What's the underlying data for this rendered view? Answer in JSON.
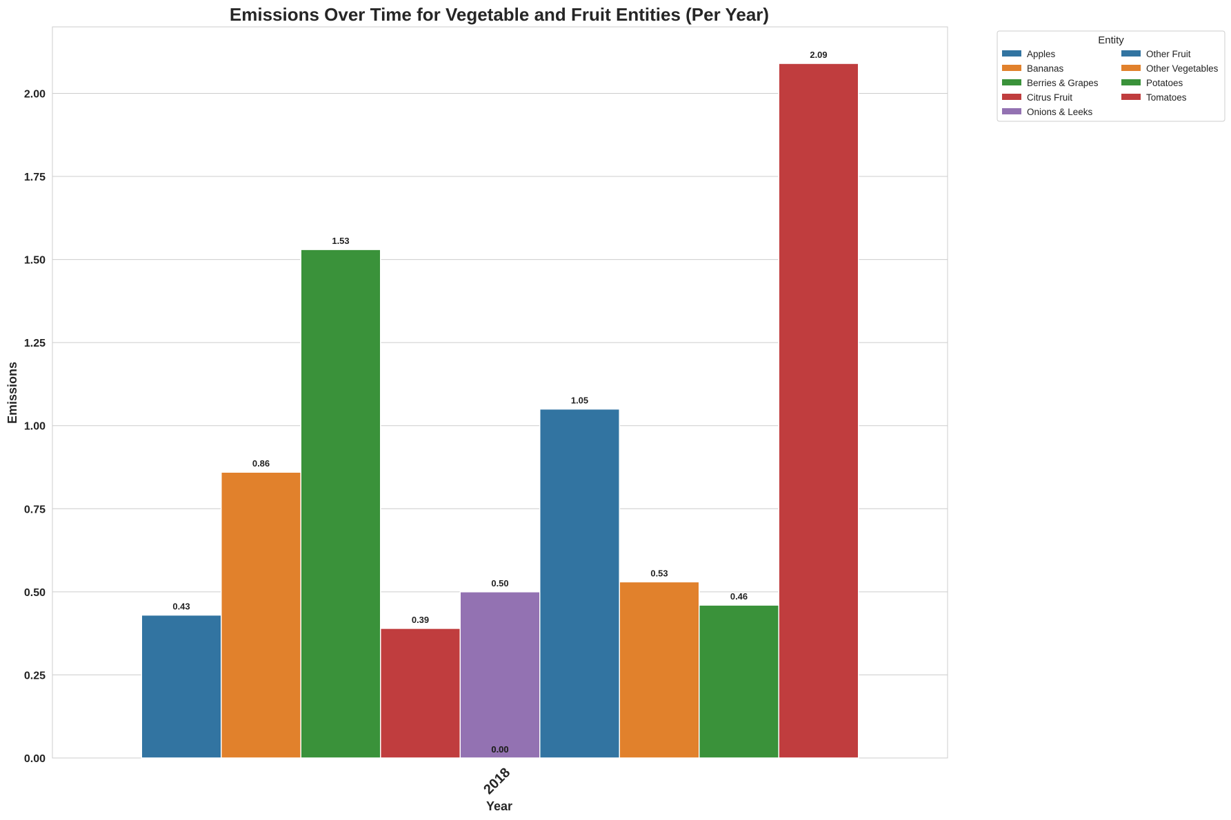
{
  "chart_data": {
    "type": "bar",
    "title": "Emissions Over Time for Vegetable and Fruit Entities (Per Year)",
    "xlabel": "Year",
    "ylabel": "Emissions",
    "categories": [
      "2018"
    ],
    "ylim": [
      0,
      2.2
    ],
    "yticks": [
      "0.00",
      "0.25",
      "0.50",
      "0.75",
      "1.00",
      "1.25",
      "1.50",
      "1.75",
      "2.00"
    ],
    "grid": true,
    "legend": {
      "title": "Entity",
      "placement": "outside-top-right",
      "columns": 2
    },
    "series": [
      {
        "name": "Apples",
        "values": [
          0.43
        ],
        "label": "0.43",
        "color": "#3274a1"
      },
      {
        "name": "Bananas",
        "values": [
          0.86
        ],
        "label": "0.86",
        "color": "#e1812c"
      },
      {
        "name": "Berries & Grapes",
        "values": [
          1.53
        ],
        "label": "1.53",
        "color": "#3a923a"
      },
      {
        "name": "Citrus Fruit",
        "values": [
          0.39
        ],
        "label": "0.39",
        "color": "#c03d3e"
      },
      {
        "name": "Onions & Leeks",
        "values": [
          0.5
        ],
        "label": "0.50",
        "color": "#9372b2"
      },
      {
        "name": "Other Fruit",
        "values": [
          1.05
        ],
        "label": "1.05",
        "color": "#3274a1"
      },
      {
        "name": "Other Vegetables",
        "values": [
          0.53
        ],
        "label": "0.53",
        "color": "#e1812c"
      },
      {
        "name": "Potatoes",
        "values": [
          0.46
        ],
        "label": "0.46",
        "color": "#3a923a"
      },
      {
        "name": "Tomatoes",
        "values": [
          2.09
        ],
        "label": "2.09",
        "color": "#c03d3e"
      }
    ],
    "extra_labels": [
      "0.00",
      "0.00"
    ]
  }
}
